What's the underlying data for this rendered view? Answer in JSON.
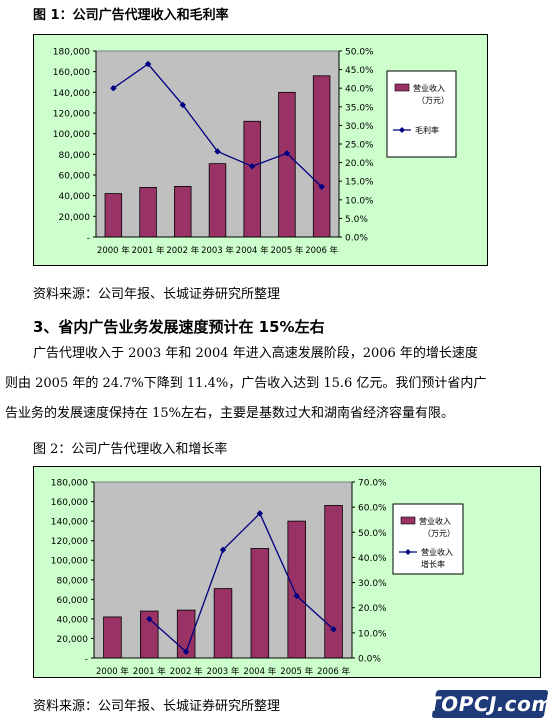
{
  "figure1": {
    "title": "图 1：公司广告代理收入和毛利率"
  },
  "source1": "资料来源：公司年报、长城证券研究所整理",
  "section": {
    "heading": "3、省内广告业务发展速度预计在 15%左右",
    "lines": [
      "广告代理收入于 2003 年和 2004 年进入高速发展阶段，2006 年的增长速度",
      "则由 2005 年的 24.7%下降到 11.4%，广告收入达到 15.6 亿元。我们预计省内广",
      "告业务的发展速度保持在 15%左右，主要是基数过大和湖南省经济容量有限。"
    ]
  },
  "figure2": {
    "title": "图 2：公司广告代理收入和增长率"
  },
  "source2": "资料来源：公司年报、长城证券研究所整理",
  "watermark": "TOPCJ.com",
  "colors": {
    "bar": "#993366",
    "line": "#000080",
    "plot_bg": "#c0c0c0",
    "frame_bg": "#ccffcc"
  },
  "chart_data": [
    {
      "type": "bar",
      "categories": [
        "2000 年",
        "2001 年",
        "2002 年",
        "2003 年",
        "2004 年",
        "2005 年",
        "2006 年"
      ],
      "series": [
        {
          "name": "营业收入\n（万元）",
          "type": "bar",
          "axis": "left",
          "values": [
            42000,
            48000,
            49000,
            71000,
            112000,
            140000,
            156000
          ]
        },
        {
          "name": "毛利率",
          "type": "line",
          "axis": "right",
          "values": [
            40.0,
            46.5,
            35.5,
            23.0,
            19.0,
            22.5,
            13.5
          ]
        }
      ],
      "ylim": [
        0,
        180000
      ],
      "yticks": [
        "-",
        "20,000",
        "40,000",
        "60,000",
        "80,000",
        "100,000",
        "120,000",
        "140,000",
        "160,000",
        "180,000"
      ],
      "y2lim": [
        0,
        50
      ],
      "y2ticks": [
        "0.0%",
        "5.0%",
        "10.0%",
        "15.0%",
        "20.0%",
        "25.0%",
        "30.0%",
        "35.0%",
        "40.0%",
        "45.0%",
        "50.0%"
      ],
      "legend": "right",
      "grid": false
    },
    {
      "type": "bar",
      "categories": [
        "2000 年",
        "2001 年",
        "2002 年",
        "2003 年",
        "2004 年",
        "2005 年",
        "2006 年"
      ],
      "series": [
        {
          "name": "营业收入\n（万元）",
          "type": "bar",
          "axis": "left",
          "values": [
            42000,
            48000,
            49000,
            71000,
            112000,
            140000,
            156000
          ]
        },
        {
          "name": "营业收入\n增长率",
          "type": "line",
          "axis": "right",
          "values": [
            null,
            15.5,
            2.5,
            43.0,
            57.5,
            24.7,
            11.4
          ]
        }
      ],
      "ylim": [
        0,
        180000
      ],
      "yticks": [
        "-",
        "20,000",
        "40,000",
        "60,000",
        "80,000",
        "100,000",
        "120,000",
        "140,000",
        "160,000",
        "180,000"
      ],
      "y2lim": [
        0,
        70
      ],
      "y2ticks": [
        "0.0%",
        "10.0%",
        "20.0%",
        "30.0%",
        "40.0%",
        "50.0%",
        "60.0%",
        "70.0%"
      ],
      "legend": "right",
      "grid": false
    }
  ]
}
